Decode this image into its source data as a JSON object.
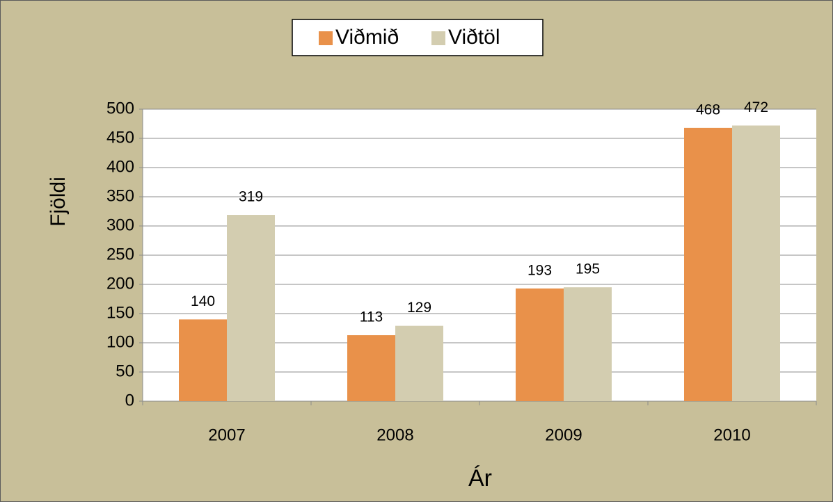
{
  "chart_data": {
    "type": "bar",
    "categories": [
      "2007",
      "2008",
      "2009",
      "2010"
    ],
    "series": [
      {
        "name": "Viðmið",
        "color": "#e9914a",
        "values": [
          140,
          113,
          193,
          468
        ]
      },
      {
        "name": "Viðtöl",
        "color": "#d3cdb0",
        "values": [
          319,
          129,
          195,
          472
        ]
      }
    ],
    "x_label": "Ár",
    "y_label": "Fjöldi",
    "ylim": [
      0,
      500
    ],
    "yticks": [
      0,
      50,
      100,
      150,
      200,
      250,
      300,
      350,
      400,
      450,
      500
    ],
    "grid": true,
    "legend": "top"
  }
}
